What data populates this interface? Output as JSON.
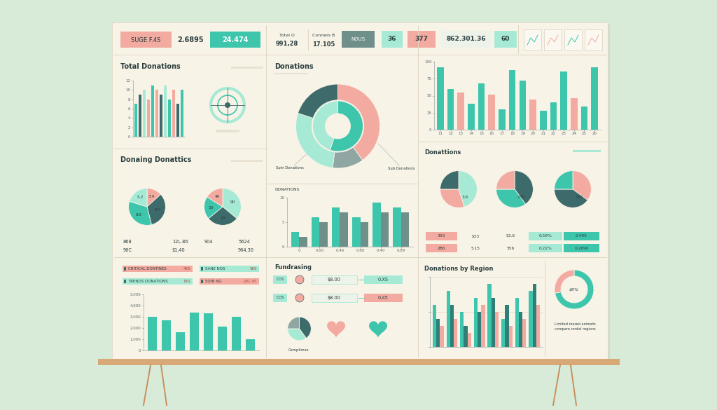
{
  "header": [
    {
      "label": "SUGE F.4S",
      "values": [
        "2.6895",
        "24.474"
      ]
    },
    {
      "label": "Total O",
      "values": [
        "991,28"
      ]
    },
    {
      "label": "Conners B",
      "values": [
        "17.105"
      ]
    },
    {
      "label": "NOUS",
      "values": [
        "36",
        "377",
        "862.301.36",
        "60"
      ]
    }
  ],
  "chart_data": [
    {
      "type": "bar",
      "title": "Total Donations",
      "categories": [
        null,
        null,
        null,
        null,
        null,
        null,
        null,
        null,
        null,
        null,
        null,
        null
      ],
      "values": [
        7,
        9,
        10,
        8,
        11,
        10,
        9,
        11,
        8,
        10,
        7,
        10
      ],
      "colors": [
        "#3ec6ad",
        "#3d6a6b",
        "#a6ead6",
        "#f3aaa0",
        "#3ec6ad",
        "#f3aaa0",
        "#3d6a6b",
        "#a6ead6",
        "#3ec6ad",
        "#f3aaa0",
        "#3d6a6b",
        "#3ec6ad"
      ],
      "ylim": [
        0,
        12
      ],
      "yticks": [
        0,
        2,
        4,
        6,
        8,
        10,
        12
      ]
    },
    {
      "type": "pie",
      "title": "Donaing Donattics",
      "data_labels": true,
      "pies": [
        {
          "values": [
            3.4,
            8.4,
            8.6,
            5.2
          ],
          "colors": [
            "#f3aaa0",
            "#3d6a6b",
            "#3ec6ad",
            "#a6ead6"
          ]
        },
        {
          "values": [
            90,
            70,
            50,
            40
          ],
          "colors": [
            "#a6ead6",
            "#3d6a6b",
            "#3ec6ad",
            "#f3aaa0"
          ]
        }
      ],
      "stats": [
        [
          "868",
          "96C"
        ],
        [
          "12L.86",
          "$1,40"
        ],
        [
          "904"
        ],
        [
          "5624",
          "964,30"
        ]
      ]
    },
    {
      "type": "bar",
      "badges": [
        [
          "CRITICAL DONTINES",
          "4KS"
        ],
        [
          "SANE NOS",
          "5KS"
        ],
        [
          "TRENDS DONATIONS",
          "1KS"
        ],
        [
          "SOIN NG",
          "201.45"
        ]
      ],
      "categories": [
        null,
        null,
        null,
        null,
        null,
        null,
        null,
        null
      ],
      "values": [
        3000,
        2700,
        1600,
        3400,
        3300,
        2100,
        3000,
        1000
      ],
      "color": "#3ec6ad",
      "ylim": [
        0,
        5000
      ],
      "yticks": [
        0,
        {
          "value": 1000,
          "label": "1,000"
        },
        {
          "value": 2000,
          "label": "2,000"
        },
        {
          "value": 3000,
          "label": "3,000"
        },
        {
          "value": 4000,
          "label": "4,000"
        },
        {
          "value": 5000,
          "label": "5,000"
        }
      ]
    },
    {
      "type": "donut",
      "title": "Donations",
      "series": [
        {
          "values": [
            40,
            12,
            28,
            20
          ],
          "colors": [
            "#f3aaa0",
            "#8fa6a3",
            "#a6ead6",
            "#3d6a6b"
          ]
        },
        {
          "values": [
            55,
            45
          ],
          "colors": [
            "#3ec6ad",
            "#a6ead6"
          ]
        }
      ],
      "annotations": [
        "Spin Donations",
        "Sub Donations"
      ]
    },
    {
      "type": "bar",
      "title": "DONATIONS",
      "categories": [
        "0",
        "0.00",
        "0.46",
        "0.80",
        "0.40",
        "0.89"
      ],
      "series": [
        {
          "color": "#3ec6ad",
          "values": [
            3,
            6,
            8,
            6,
            9,
            8
          ]
        },
        {
          "color": "#6f8f8b",
          "values": [
            2,
            5,
            7,
            5,
            7,
            7
          ]
        }
      ],
      "ylim": [
        0,
        10
      ],
      "yticks": [
        0,
        5,
        10
      ]
    },
    {
      "type": "pie",
      "title": "Fundrasing",
      "rows": [
        [
          "DOS",
          "$8.00",
          "0.XS"
        ],
        [
          "DOS",
          "$8.00",
          "0.45"
        ]
      ],
      "values": [
        40,
        35,
        25
      ],
      "colors": [
        "#3d6a6b",
        "#a6ead6",
        "#8fa6a3"
      ],
      "annotations": [
        "Complimes"
      ]
    },
    {
      "type": "bar",
      "categories": [
        "11",
        "12",
        "13",
        "14",
        "15",
        "16",
        "17",
        "18",
        "19",
        "20",
        "21",
        "22",
        "23",
        "24",
        "25",
        "26"
      ],
      "values": [
        92,
        60,
        55,
        38,
        68,
        52,
        30,
        88,
        72,
        44,
        28,
        40,
        86,
        46,
        34,
        92
      ],
      "colors": [
        "#3ec6ad",
        "#3ec6ad",
        "#f3aaa0",
        "#3ec6ad",
        "#3ec6ad",
        "#f3aaa0",
        "#3ec6ad",
        "#3ec6ad",
        "#3ec6ad",
        "#f3aaa0",
        "#3ec6ad",
        "#3ec6ad",
        "#3ec6ad",
        "#f3aaa0",
        "#3ec6ad",
        "#3ec6ad"
      ],
      "ylim": [
        0,
        100
      ],
      "yticks": [
        0,
        25,
        50,
        75,
        100
      ]
    },
    {
      "type": "pie",
      "title": "Donattions",
      "pies": [
        {
          "values": [
            45,
            30,
            25
          ],
          "colors": [
            "#a6ead6",
            "#f3aaa0",
            "#3d6a6b"
          ],
          "note": "3.6"
        },
        {
          "values": [
            40,
            35,
            25
          ],
          "colors": [
            "#3d6a6b",
            "#3ec6ad",
            "#f3aaa0"
          ],
          "note": "239"
        },
        {
          "values": [
            35,
            40,
            25
          ],
          "colors": [
            "#f3aaa0",
            "#3d6a6b",
            "#3ec6ad"
          ],
          "note": "55C"
        }
      ],
      "rows": [
        [
          "303",
          "$33",
          "53.6",
          "0.59%",
          "0.490"
        ],
        [
          "2B6",
          "5.15",
          "556",
          "0.22%",
          "0.2690"
        ]
      ]
    },
    {
      "type": "bar",
      "title": "Donations by Region",
      "grid": true,
      "tick_labels": false,
      "categories": [
        null,
        null,
        null,
        null,
        null,
        null,
        null,
        null
      ],
      "series": [
        {
          "color": "#3ec6ad",
          "values": [
            6,
            8,
            5,
            7,
            9,
            4,
            7,
            8
          ]
        },
        {
          "color": "#2f7f78",
          "values": [
            4,
            6,
            3,
            5,
            7,
            6,
            5,
            9
          ]
        },
        {
          "color": "#f3aaa0",
          "values": [
            3,
            4,
            2,
            6,
            5,
            3,
            4,
            6
          ]
        }
      ],
      "ylim": [
        0,
        10
      ],
      "yticks": [
        0,
        5,
        10
      ],
      "donut": {
        "values": [
          72,
          28
        ],
        "colors": [
          "#3ec6ad",
          "#f3aaa0"
        ],
        "note": "$9%"
      },
      "annotations": [
        "Limited reared animets",
        "compare rental regions"
      ]
    }
  ]
}
